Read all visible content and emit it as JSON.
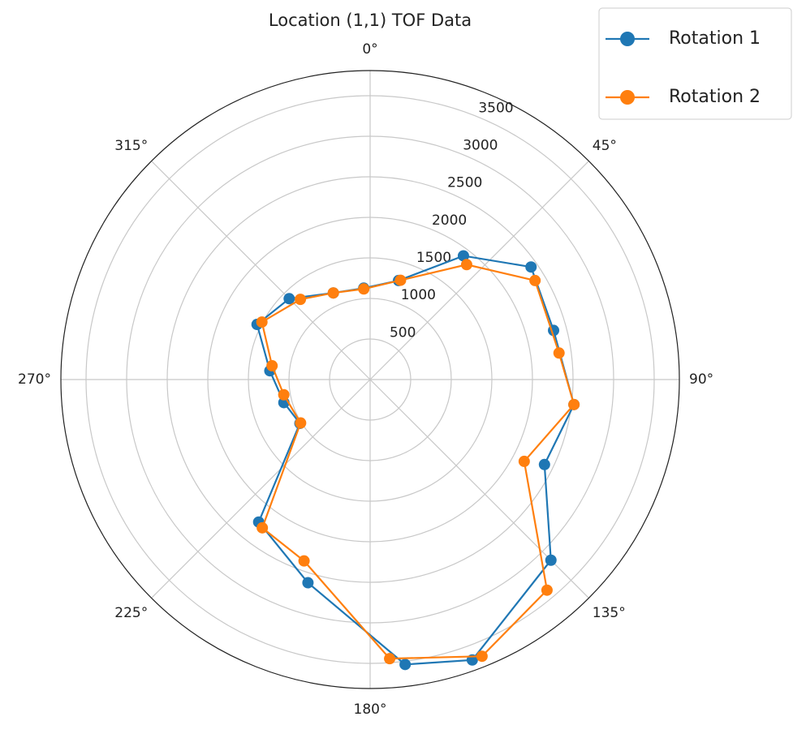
{
  "chart_data": {
    "type": "polar",
    "title": "Location (1,1) TOF Data",
    "rlim": [
      0,
      3810
    ],
    "rticks": [
      500,
      1000,
      1500,
      2000,
      2500,
      3000,
      3500
    ],
    "thetaticks": [
      {
        "value": 0,
        "label": "0°"
      },
      {
        "value": 45,
        "label": "45°"
      },
      {
        "value": 90,
        "label": "90°"
      },
      {
        "value": 135,
        "label": "135°"
      },
      {
        "value": 180,
        "label": "180°"
      },
      {
        "value": 225,
        "label": "225°"
      },
      {
        "value": 270,
        "label": "270°"
      },
      {
        "value": 315,
        "label": "315°"
      }
    ],
    "grid": true,
    "legend": "upper right",
    "series": [
      {
        "name": "Rotation 1",
        "color": "#1f77b4",
        "theta": [
          356,
          16,
          37,
          55,
          75,
          97,
          116,
          135,
          160,
          173,
          197,
          218,
          238,
          255,
          275,
          296,
          315,
          337
        ],
        "values": [
          1130,
          1270,
          1910,
          2420,
          2340,
          2530,
          2390,
          3150,
          3680,
          3540,
          2620,
          2230,
          1020,
          1100,
          1240,
          1550,
          1410,
          1160
        ]
      },
      {
        "name": "Rotation 2",
        "color": "#ff7f0e",
        "theta": [
          356,
          17,
          40,
          59,
          82,
          97,
          118,
          140,
          158,
          176,
          200,
          216,
          238,
          260,
          278,
          298,
          319,
          337
        ],
        "values": [
          1120,
          1280,
          1850,
          2370,
          2350,
          2530,
          2150,
          3390,
          3680,
          3450,
          2380,
          2260,
          1010,
          1080,
          1220,
          1510,
          1310,
          1160
        ]
      }
    ]
  }
}
